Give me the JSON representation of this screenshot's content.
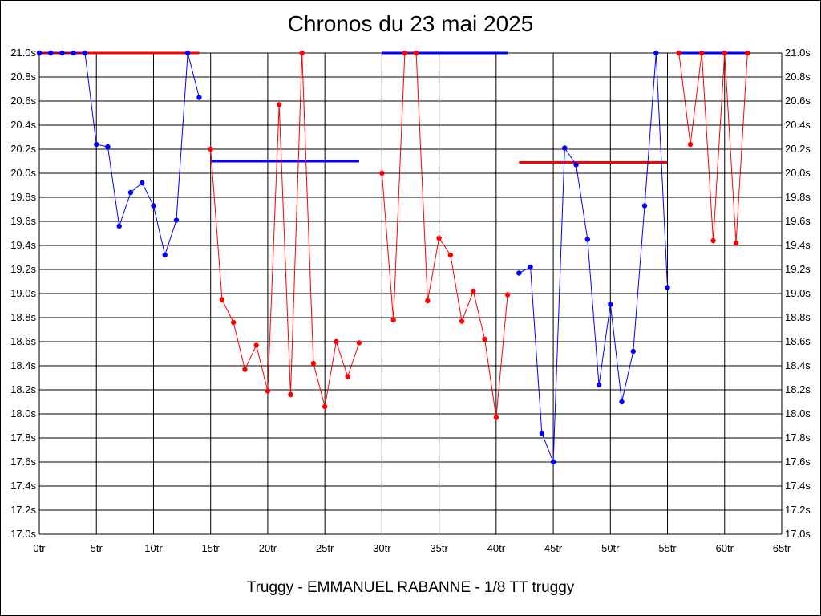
{
  "chart_data": {
    "type": "line",
    "title": "Chronos du 23 mai 2025",
    "subtitle": "Truggy - EMMANUEL RABANNE - 1/8 TT truggy",
    "xlim": [
      0,
      65
    ],
    "ylim": [
      17.0,
      21.0
    ],
    "x_ticks": [
      0,
      5,
      10,
      15,
      20,
      25,
      30,
      35,
      40,
      45,
      50,
      55,
      60,
      65
    ],
    "x_tick_labels": [
      "0tr",
      "5tr",
      "10tr",
      "15tr",
      "20tr",
      "25tr",
      "30tr",
      "35tr",
      "40tr",
      "45tr",
      "50tr",
      "55tr",
      "60tr",
      "65tr"
    ],
    "y_ticks": [
      17.0,
      17.2,
      17.4,
      17.6,
      17.8,
      18.0,
      18.2,
      18.4,
      18.6,
      18.8,
      19.0,
      19.2,
      19.4,
      19.6,
      19.8,
      20.0,
      20.2,
      20.4,
      20.6,
      20.8,
      21.0
    ],
    "y_tick_labels": [
      "17.0s",
      "17.2s",
      "17.4s",
      "17.6s",
      "17.8s",
      "18.0s",
      "18.2s",
      "18.4s",
      "18.6s",
      "18.8s",
      "19.0s",
      "19.2s",
      "19.4s",
      "19.6s",
      "19.8s",
      "20.0s",
      "20.2s",
      "20.4s",
      "20.6s",
      "20.8s",
      "21.0s"
    ],
    "grid": true,
    "series": [
      {
        "color": "#0000ff",
        "x": [
          0,
          1,
          2,
          3,
          4,
          5,
          6,
          7,
          8,
          9,
          10,
          11,
          12,
          13,
          14
        ],
        "y": [
          21.0,
          21.0,
          21.0,
          21.0,
          21.0,
          20.24,
          20.22,
          19.56,
          19.84,
          19.92,
          19.73,
          19.32,
          19.61,
          21.0,
          20.63
        ]
      },
      {
        "color": "#ff0000",
        "x": [
          15,
          16,
          17,
          18,
          19,
          20,
          21,
          22,
          23,
          24,
          25,
          26,
          27,
          28
        ],
        "y": [
          20.2,
          18.95,
          18.76,
          18.37,
          18.57,
          18.19,
          20.57,
          18.16,
          21.0,
          18.42,
          18.06,
          18.6,
          18.31,
          18.59
        ]
      },
      {
        "color": "#ff0000",
        "x": [
          30,
          31,
          32,
          33,
          34,
          35,
          36,
          37,
          38,
          39,
          40,
          41
        ],
        "y": [
          20.0,
          18.78,
          21.0,
          21.0,
          18.94,
          19.46,
          19.32,
          18.77,
          19.02,
          18.62,
          17.97,
          18.99
        ]
      },
      {
        "color": "#0000ff",
        "x": [
          42,
          43,
          44,
          45,
          46,
          47,
          48,
          49,
          50,
          51,
          52,
          53,
          54,
          55
        ],
        "y": [
          19.17,
          19.22,
          17.84,
          17.6,
          20.21,
          20.07,
          19.45,
          18.24,
          18.91,
          18.1,
          18.52,
          19.73,
          21.0,
          19.05
        ]
      },
      {
        "color": "#ff0000",
        "x": [
          56,
          57,
          58,
          59,
          60,
          61,
          62
        ],
        "y": [
          21.0,
          20.24,
          21.0,
          19.44,
          21.0,
          19.42,
          21.0
        ]
      }
    ],
    "mean_lines": [
      {
        "color": "#ff0000",
        "x": [
          0,
          14
        ],
        "y": 21.0
      },
      {
        "color": "#0000ff",
        "x": [
          15,
          28
        ],
        "y": 20.1
      },
      {
        "color": "#0000ff",
        "x": [
          30,
          41
        ],
        "y": 21.0
      },
      {
        "color": "#ff0000",
        "x": [
          42,
          55
        ],
        "y": 20.09
      },
      {
        "color": "#0000ff",
        "x": [
          56,
          62
        ],
        "y": 21.0
      }
    ]
  }
}
